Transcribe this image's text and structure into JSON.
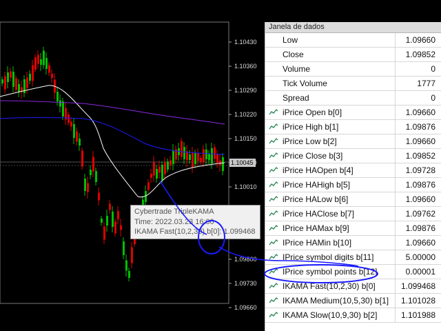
{
  "chart": {
    "price_labels": [
      "1.10430",
      "1.10360",
      "1.10290",
      "1.10220",
      "1.10150",
      "1.10080",
      "1.10010",
      "1.09940",
      "1.09870",
      "1.09800",
      "1.09730",
      "1.09660"
    ],
    "current_price": "1.10045",
    "colors": {
      "bull": "#00c000",
      "bear": "#e00000",
      "kama_fast": "#ffffff",
      "kama_medium": "#8a2be2",
      "kama_slow": "#1c1cff",
      "annotation": "#1a1aff"
    }
  },
  "tooltip": {
    "line1": "Cybertrade TripleKAMA",
    "line2": "Time: 2022.03.23 16:00",
    "line3": "IKAMA Fast(10,2,30) b[0]: 1.099468"
  },
  "data_window": {
    "title": "Janela de dados",
    "rows": [
      {
        "label": "Low",
        "value": "1.09660",
        "icon": false
      },
      {
        "label": "Close",
        "value": "1.09852",
        "icon": false
      },
      {
        "label": "Volume",
        "value": "0",
        "icon": false
      },
      {
        "label": "Tick Volume",
        "value": "1777",
        "icon": false
      },
      {
        "label": "Spread",
        "value": "0",
        "icon": false
      },
      {
        "label": "iPrice Open b[0]",
        "value": "1.09660",
        "icon": true
      },
      {
        "label": "iPrice High b[1]",
        "value": "1.09876",
        "icon": true
      },
      {
        "label": "iPrice Low b[2]",
        "value": "1.09660",
        "icon": true
      },
      {
        "label": "iPrice Close b[3]",
        "value": "1.09852",
        "icon": true
      },
      {
        "label": "iPrice HAOpen b[4]",
        "value": "1.09728",
        "icon": true
      },
      {
        "label": "iPrice HAHigh b[5]",
        "value": "1.09876",
        "icon": true
      },
      {
        "label": "iPrice HALow b[6]",
        "value": "1.09660",
        "icon": true
      },
      {
        "label": "iPrice HAClose b[7]",
        "value": "1.09762",
        "icon": true
      },
      {
        "label": "IPrice HAMax b[9]",
        "value": "1.09876",
        "icon": true
      },
      {
        "label": "IPrice HAMin b[10]",
        "value": "1.09660",
        "icon": true
      },
      {
        "label": "IPrice symbol digits b[11]",
        "value": "5.00000",
        "icon": true
      },
      {
        "label": "IPrice symbol points b[12]",
        "value": "0.00001",
        "icon": true
      },
      {
        "label": "IKAMA Fast(10,2,30) b[0]",
        "value": "1.099468",
        "icon": true
      },
      {
        "label": "IKAMA Medium(10,5,30) b[1]",
        "value": "1.101028",
        "icon": true
      },
      {
        "label": "IKAMA Slow(10,9,30) b[2]",
        "value": "1.101988",
        "icon": true
      }
    ]
  }
}
